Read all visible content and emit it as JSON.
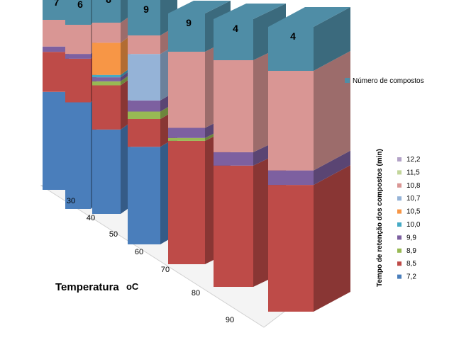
{
  "chart_data": {
    "type": "bar",
    "subtype": "3d-stacked-column",
    "categories": [
      "30",
      "40",
      "50",
      "60",
      "70",
      "80",
      "90"
    ],
    "xlabel": "Temperatura",
    "xlabel_unit": "oC",
    "count_series": {
      "name": "Número de compostos",
      "color": "#4F8DA6",
      "values": [
        7,
        6,
        8,
        9,
        9,
        4,
        4
      ]
    },
    "legend_title": "Tempo de retenção dos compostos (min)",
    "series": [
      {
        "name": "7,2",
        "color": "#4A7EBB",
        "values": [
          110,
          110,
          105,
          105,
          0,
          0,
          0
        ]
      },
      {
        "name": "8,5",
        "color": "#BE4B48",
        "values": [
          45,
          45,
          55,
          30,
          170,
          145,
          140
        ]
      },
      {
        "name": "8,9",
        "color": "#98B954",
        "values": [
          0,
          0,
          5,
          8,
          4,
          0,
          0
        ]
      },
      {
        "name": "9,9",
        "color": "#7D60A0",
        "values": [
          6,
          5,
          5,
          12,
          14,
          16,
          16
        ]
      },
      {
        "name": "10,0",
        "color": "#46AAC5",
        "values": [
          0,
          0,
          3,
          0,
          0,
          0,
          0
        ]
      },
      {
        "name": "10,5",
        "color": "#F79646",
        "values": [
          0,
          0,
          40,
          0,
          0,
          0,
          0
        ]
      },
      {
        "name": "10,7",
        "color": "#95B3D7",
        "values": [
          0,
          0,
          0,
          50,
          0,
          0,
          0
        ]
      },
      {
        "name": "10,8",
        "color": "#D99694",
        "values": [
          30,
          30,
          25,
          20,
          105,
          110,
          110
        ]
      },
      {
        "name": "11,5",
        "color": "#C3D69B",
        "values": [
          0,
          0,
          0,
          0,
          0,
          0,
          0
        ]
      },
      {
        "name": "12,2",
        "color": "#B3A2C7",
        "values": [
          0,
          0,
          0,
          0,
          0,
          0,
          0
        ]
      }
    ],
    "legend_placement": "right",
    "grid": false
  }
}
